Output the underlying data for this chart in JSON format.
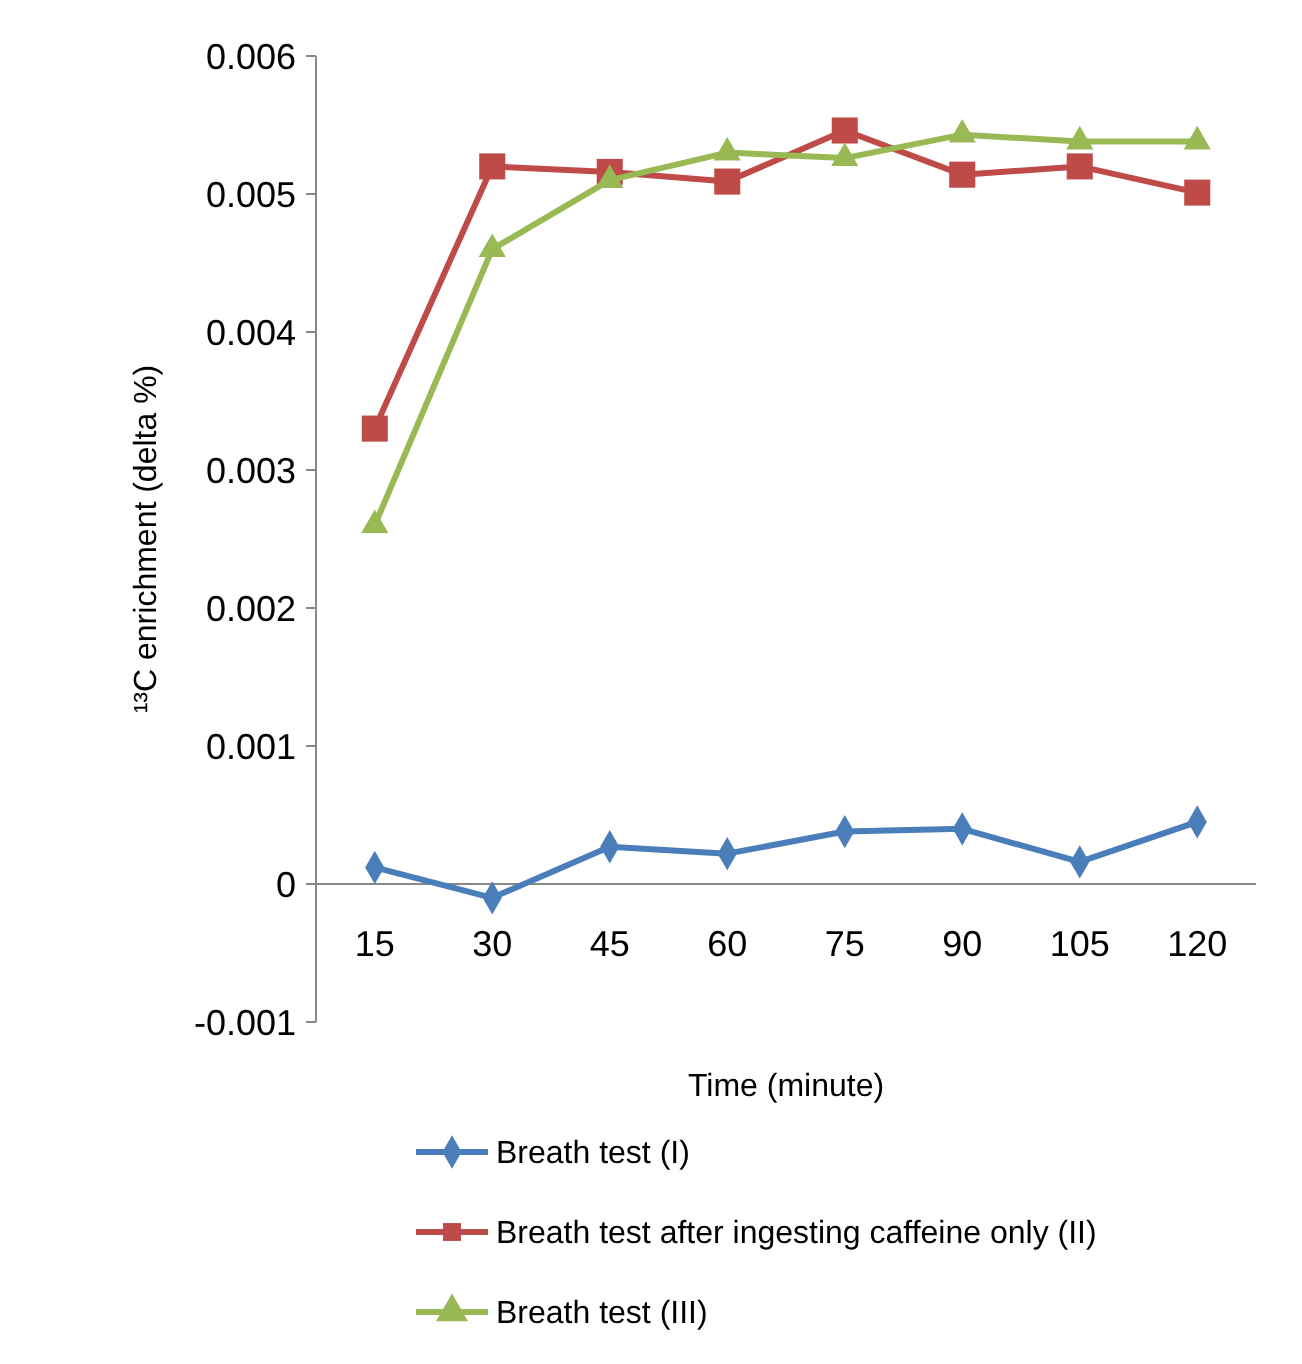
{
  "chart_data": {
    "type": "line",
    "xlabel": "Time (minute)",
    "ylabel": "¹³C enrichment (delta %)",
    "categories": [
      "15",
      "30",
      "45",
      "60",
      "75",
      "90",
      "105",
      "120"
    ],
    "series": [
      {
        "name": "Breath test (I)",
        "color": "#4a7ebb",
        "marker": "diamond",
        "values": [
          0.00012,
          -0.0001,
          0.00027,
          0.00022,
          0.00038,
          0.0004,
          0.00016,
          0.00045
        ]
      },
      {
        "name": "Breath test after ingesting caffeine only (II)",
        "color": "#be4b48",
        "marker": "square",
        "values": [
          0.0033,
          0.0052,
          0.00516,
          0.00509,
          0.00546,
          0.00514,
          0.0052,
          0.00501
        ]
      },
      {
        "name": "Breath test (III)",
        "color": "#98b954",
        "marker": "triangle",
        "values": [
          0.0026,
          0.0046,
          0.0051,
          0.0053,
          0.00526,
          0.00543,
          0.00538,
          0.00538
        ]
      }
    ],
    "ylim": [
      -0.001,
      0.006
    ],
    "yticks": [
      -0.001,
      0,
      0.001,
      0.002,
      0.003,
      0.004,
      0.005,
      0.006
    ],
    "grid": false,
    "legend": "bottom"
  }
}
